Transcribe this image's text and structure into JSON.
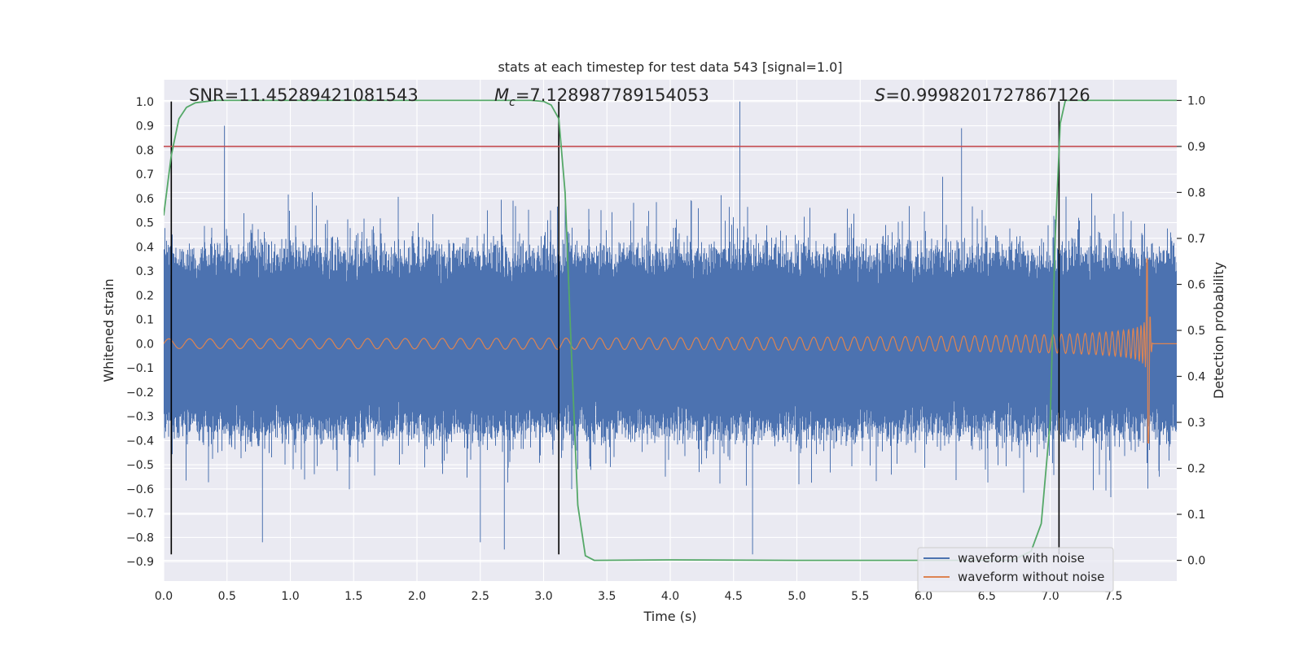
{
  "chart_data": {
    "type": "line",
    "title": "stats at each timestep for test data 543 [signal=1.0]",
    "xlabel": "Time (s)",
    "ylabel": "Whitened strain",
    "y2label": "Detection probability",
    "xlim": [
      0.0,
      8.0
    ],
    "ylim": [
      -0.98,
      1.09
    ],
    "y2lim": [
      -0.045,
      1.045
    ],
    "x_ticks": [
      0.0,
      0.5,
      1.0,
      1.5,
      2.0,
      2.5,
      3.0,
      3.5,
      4.0,
      4.5,
      5.0,
      5.5,
      6.0,
      6.5,
      7.0,
      7.5
    ],
    "x_tick_labels": [
      "0.0",
      "0.5",
      "1.0",
      "1.5",
      "2.0",
      "2.5",
      "3.0",
      "3.5",
      "4.0",
      "4.5",
      "5.0",
      "5.5",
      "6.0",
      "6.5",
      "7.0",
      "7.5"
    ],
    "y_ticks": [
      1.0,
      0.9,
      0.8,
      0.7,
      0.6,
      0.5,
      0.4,
      0.3,
      0.2,
      0.1,
      0.0,
      -0.1,
      -0.2,
      -0.3,
      -0.4,
      -0.5,
      -0.6,
      -0.7,
      -0.8,
      -0.9
    ],
    "y_tick_labels": [
      "1.0",
      "0.9",
      "0.8",
      "0.7",
      "0.6",
      "0.5",
      "0.4",
      "0.3",
      "0.2",
      "0.1",
      "0.0",
      "−0.1",
      "−0.2",
      "−0.3",
      "−0.4",
      "−0.5",
      "−0.6",
      "−0.7",
      "−0.8",
      "−0.9"
    ],
    "y2_ticks": [
      1.0,
      0.9,
      0.8,
      0.7,
      0.6,
      0.5,
      0.4,
      0.3,
      0.2,
      0.1,
      0.0
    ],
    "y2_tick_labels": [
      "1.0",
      "0.9",
      "0.8",
      "0.7",
      "0.6",
      "0.5",
      "0.4",
      "0.3",
      "0.2",
      "0.1",
      "0.0"
    ],
    "stats": {
      "snr": "SNR=11.45289421081543",
      "mc_symbol": "M",
      "mc_subscript": "c",
      "mc_value": "=7.128987789154053",
      "s_symbol": "S",
      "s_value": "=0.9998201727867126"
    },
    "threshold": {
      "value": 0.9,
      "axis": "detection_probability",
      "color": "#c44e52"
    },
    "vertical_markers": [
      0.06,
      3.12,
      7.07
    ],
    "series": [
      {
        "name": "waveform with noise",
        "color": "#4c72b0",
        "axis": "left",
        "description_values": {
          "amplitude_range": [
            -0.87,
            1.0
          ],
          "notable_peaks": [
            [
              0.48,
              0.9
            ],
            [
              4.55,
              1.0
            ],
            [
              6.3,
              0.89
            ],
            [
              4.65,
              -0.87
            ],
            [
              2.69,
              -0.85
            ],
            [
              2.5,
              -0.82
            ],
            [
              0.78,
              -0.82
            ]
          ]
        }
      },
      {
        "name": "waveform without noise",
        "color": "#dd8452",
        "axis": "left",
        "chirp": {
          "t_merger": 7.78,
          "peak_amplitude": 0.35,
          "min_amplitude": -0.41,
          "start_amplitude": 0.02
        }
      },
      {
        "name": "",
        "color": "#55a868",
        "axis": "right",
        "points": [
          [
            0.0,
            0.75
          ],
          [
            0.06,
            0.88
          ],
          [
            0.12,
            0.96
          ],
          [
            0.18,
            0.985
          ],
          [
            0.25,
            0.995
          ],
          [
            0.4,
            1.0
          ],
          [
            1.0,
            1.0
          ],
          [
            2.0,
            1.0
          ],
          [
            2.9,
            1.0
          ],
          [
            3.0,
            0.998
          ],
          [
            3.06,
            0.99
          ],
          [
            3.12,
            0.96
          ],
          [
            3.17,
            0.8
          ],
          [
            3.22,
            0.45
          ],
          [
            3.27,
            0.12
          ],
          [
            3.33,
            0.01
          ],
          [
            3.4,
            0.0
          ],
          [
            4.0,
            0.001
          ],
          [
            5.0,
            0.0
          ],
          [
            6.0,
            0.0
          ],
          [
            6.7,
            0.0
          ],
          [
            6.85,
            0.02
          ],
          [
            6.93,
            0.08
          ],
          [
            7.0,
            0.3
          ],
          [
            7.04,
            0.7
          ],
          [
            7.08,
            0.95
          ],
          [
            7.12,
            1.0
          ],
          [
            7.5,
            1.0
          ],
          [
            8.0,
            1.0
          ]
        ]
      }
    ],
    "legend": {
      "position": "lower-right",
      "entries": [
        {
          "label": "waveform with noise",
          "color": "#4c72b0"
        },
        {
          "label": "waveform without noise",
          "color": "#dd8452"
        }
      ]
    },
    "grid": true,
    "style": {
      "background": "#eaeaf2",
      "grid_color": "#ffffff"
    }
  }
}
